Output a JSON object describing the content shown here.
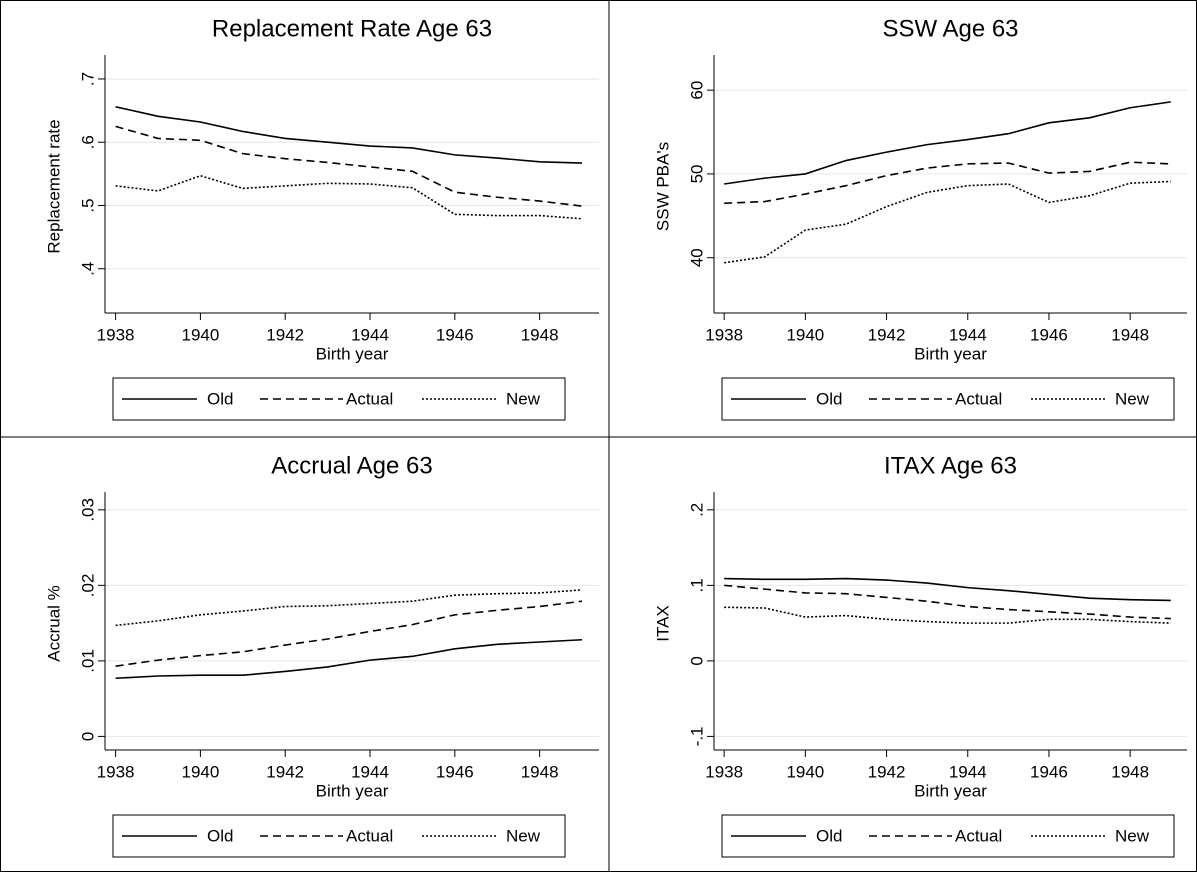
{
  "chart_data": [
    {
      "type": "line",
      "title": "Replacement Rate Age 63",
      "xlabel": "Birth year",
      "ylabel": "Replacement rate",
      "x": [
        1938,
        1939,
        1940,
        1941,
        1942,
        1943,
        1944,
        1945,
        1946,
        1947,
        1948,
        1949
      ],
      "xlim": [
        1937.75,
        1949.4
      ],
      "xticks": [
        1938,
        1940,
        1942,
        1944,
        1946,
        1948
      ],
      "ylim": [
        0.33,
        0.73
      ],
      "yticks": [
        {
          "value": 0.4,
          "label": ".4"
        },
        {
          "value": 0.5,
          "label": ".5"
        },
        {
          "value": 0.6,
          "label": ".6"
        },
        {
          "value": 0.7,
          "label": ".7"
        }
      ],
      "grid": true,
      "series": [
        {
          "name": "Old",
          "color": "#000000",
          "style": "solid",
          "values": [
            0.656,
            0.641,
            0.632,
            0.617,
            0.606,
            0.6,
            0.594,
            0.591,
            0.58,
            0.575,
            0.569,
            0.567
          ]
        },
        {
          "name": "Actual",
          "color": "#000000",
          "style": "dashed",
          "values": [
            0.625,
            0.606,
            0.603,
            0.582,
            0.574,
            0.568,
            0.561,
            0.554,
            0.521,
            0.513,
            0.507,
            0.499
          ]
        },
        {
          "name": "New",
          "color": "#000000",
          "style": "dotted",
          "values": [
            0.531,
            0.523,
            0.547,
            0.527,
            0.531,
            0.535,
            0.534,
            0.528,
            0.486,
            0.484,
            0.484,
            0.479
          ]
        }
      ]
    },
    {
      "type": "line",
      "title": "SSW Age 63",
      "xlabel": "Birth year",
      "ylabel": "SSW PBA's",
      "x": [
        1938,
        1939,
        1940,
        1941,
        1942,
        1943,
        1944,
        1945,
        1946,
        1947,
        1948,
        1949
      ],
      "xlim": [
        1937.75,
        1949.4
      ],
      "xticks": [
        1938,
        1940,
        1942,
        1944,
        1946,
        1948
      ],
      "ylim": [
        33.4,
        63.6
      ],
      "yticks": [
        40,
        50,
        60
      ],
      "grid": true,
      "series": [
        {
          "name": "Old",
          "color": "#000000",
          "style": "solid",
          "values": [
            48.8,
            49.5,
            50.0,
            51.6,
            52.6,
            53.5,
            54.1,
            54.8,
            56.1,
            56.7,
            57.9,
            58.6
          ]
        },
        {
          "name": "Actual",
          "color": "#000000",
          "style": "dashed",
          "values": [
            46.5,
            46.7,
            47.6,
            48.6,
            49.8,
            50.7,
            51.2,
            51.3,
            50.1,
            50.3,
            51.4,
            51.2
          ]
        },
        {
          "name": "New",
          "color": "#000000",
          "style": "dotted",
          "values": [
            39.4,
            40.1,
            43.3,
            44.0,
            46.1,
            47.8,
            48.6,
            48.8,
            46.6,
            47.4,
            48.9,
            49.1
          ]
        }
      ]
    },
    {
      "type": "line",
      "title": "Accrual Age 63",
      "xlabel": "Birth year",
      "ylabel": "Accrual %",
      "x": [
        1938,
        1939,
        1940,
        1941,
        1942,
        1943,
        1944,
        1945,
        1946,
        1947,
        1948,
        1949
      ],
      "xlim": [
        1937.75,
        1949.4
      ],
      "xticks": [
        1938,
        1940,
        1942,
        1944,
        1946,
        1948
      ],
      "ylim": [
        -0.0018,
        0.0317
      ],
      "yticks": [
        0,
        {
          "value": 0.01,
          "label": ".01"
        },
        {
          "value": 0.02,
          "label": ".02"
        },
        {
          "value": 0.03,
          "label": ".03"
        }
      ],
      "grid": true,
      "series": [
        {
          "name": "Old",
          "color": "#000000",
          "style": "solid",
          "values": [
            0.0077,
            0.008,
            0.0081,
            0.0081,
            0.0086,
            0.0092,
            0.0101,
            0.0106,
            0.0116,
            0.0122,
            0.0125,
            0.0128
          ]
        },
        {
          "name": "Actual",
          "color": "#000000",
          "style": "dashed",
          "values": [
            0.0093,
            0.0101,
            0.0107,
            0.0112,
            0.0121,
            0.0129,
            0.0139,
            0.0148,
            0.0161,
            0.0167,
            0.0172,
            0.0179
          ]
        },
        {
          "name": "New",
          "color": "#000000",
          "style": "dotted",
          "values": [
            0.0147,
            0.0153,
            0.0161,
            0.0166,
            0.0172,
            0.0173,
            0.0176,
            0.0179,
            0.0187,
            0.0189,
            0.019,
            0.0194
          ]
        }
      ]
    },
    {
      "type": "line",
      "title": "ITAX Age 63",
      "xlabel": "Birth year",
      "ylabel": "ITAX",
      "x": [
        1938,
        1939,
        1940,
        1941,
        1942,
        1943,
        1944,
        1945,
        1946,
        1947,
        1948,
        1949
      ],
      "xlim": [
        1937.75,
        1949.4
      ],
      "xticks": [
        1938,
        1940,
        1942,
        1944,
        1946,
        1948
      ],
      "ylim": [
        -0.118,
        0.217
      ],
      "yticks": [
        {
          "value": -0.1,
          "label": "-.1"
        },
        0,
        {
          "value": 0.1,
          "label": ".1"
        },
        {
          "value": 0.2,
          "label": ".2"
        }
      ],
      "grid": true,
      "series": [
        {
          "name": "Old",
          "color": "#000000",
          "style": "solid",
          "values": [
            0.109,
            0.108,
            0.108,
            0.109,
            0.107,
            0.103,
            0.097,
            0.093,
            0.088,
            0.083,
            0.081,
            0.08
          ]
        },
        {
          "name": "Actual",
          "color": "#000000",
          "style": "dashed",
          "values": [
            0.1,
            0.095,
            0.09,
            0.089,
            0.084,
            0.079,
            0.072,
            0.068,
            0.065,
            0.062,
            0.058,
            0.056
          ]
        },
        {
          "name": "New",
          "color": "#000000",
          "style": "dotted",
          "values": [
            0.071,
            0.07,
            0.058,
            0.06,
            0.055,
            0.052,
            0.05,
            0.05,
            0.055,
            0.055,
            0.052,
            0.05
          ]
        }
      ]
    }
  ]
}
